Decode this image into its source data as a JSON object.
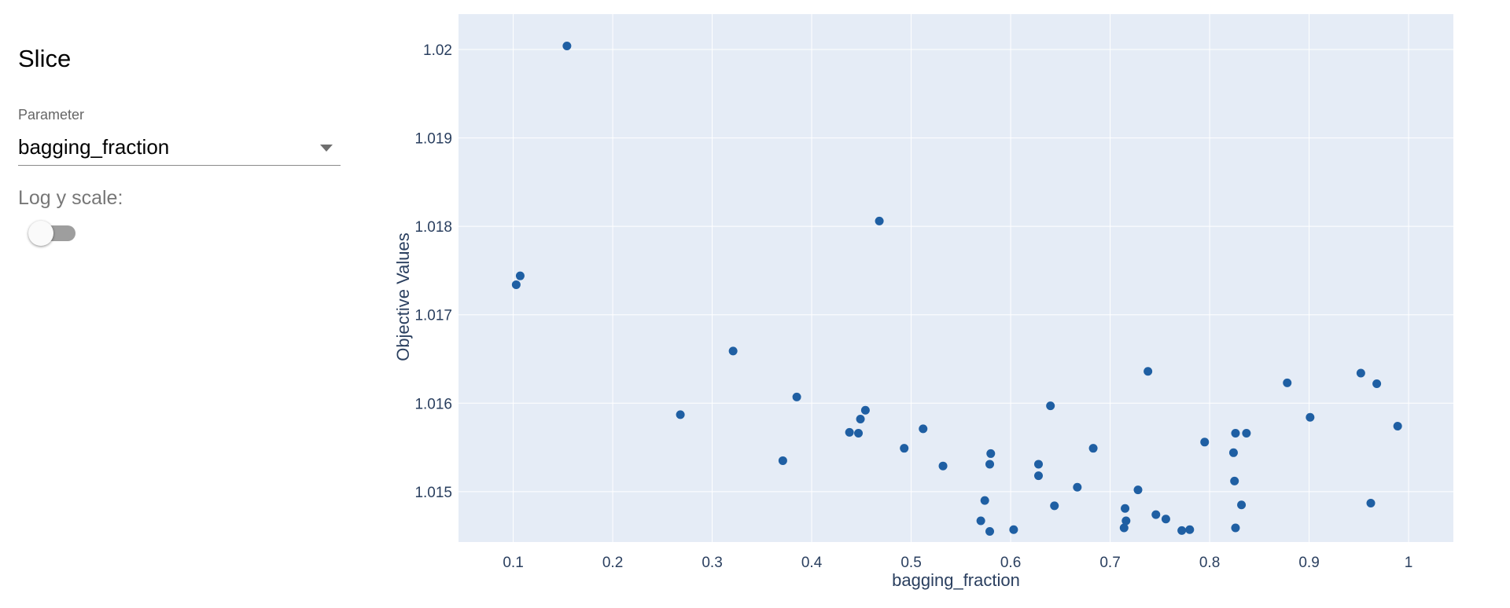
{
  "sidebar": {
    "title": "Slice",
    "parameter_label": "Parameter",
    "parameter_value": "bagging_fraction",
    "log_scale_label": "Log y scale:",
    "log_scale_enabled": false
  },
  "colors": {
    "plot_background": "#e5ecf6",
    "grid": "#ffffff",
    "marker": "#1f5fa3",
    "axis_text": "#2a3f5f"
  },
  "chart_data": {
    "type": "scatter",
    "xlabel": "bagging_fraction",
    "ylabel": "Objective Values",
    "xlim": [
      0.045,
      1.045
    ],
    "ylim": [
      1.01443,
      1.0204
    ],
    "log_y": false,
    "grid": true,
    "xticks": [
      0.1,
      0.2,
      0.3,
      0.4,
      0.5,
      0.6,
      0.7,
      0.8,
      0.9,
      1.0
    ],
    "xtick_labels": [
      "0.1",
      "0.2",
      "0.3",
      "0.4",
      "0.5",
      "0.6",
      "0.7",
      "0.8",
      "0.9",
      "1"
    ],
    "yticks": [
      1.015,
      1.016,
      1.017,
      1.018,
      1.019,
      1.02
    ],
    "ytick_labels": [
      "1.015",
      "1.016",
      "1.017",
      "1.018",
      "1.019",
      "1.02"
    ],
    "x": [
      0.154,
      0.103,
      0.107,
      0.468,
      0.321,
      0.268,
      0.385,
      0.371,
      0.438,
      0.447,
      0.449,
      0.454,
      0.493,
      0.512,
      0.532,
      0.57,
      0.574,
      0.579,
      0.579,
      0.58,
      0.603,
      0.628,
      0.628,
      0.64,
      0.644,
      0.667,
      0.683,
      0.714,
      0.715,
      0.716,
      0.728,
      0.738,
      0.746,
      0.756,
      0.772,
      0.78,
      0.795,
      0.824,
      0.825,
      0.826,
      0.826,
      0.832,
      0.837,
      0.878,
      0.901,
      0.952,
      0.962,
      0.968,
      0.989
    ],
    "y": [
      1.02004,
      1.01734,
      1.01744,
      1.01806,
      1.01659,
      1.01587,
      1.01607,
      1.01535,
      1.01567,
      1.01566,
      1.01582,
      1.01592,
      1.01549,
      1.01571,
      1.01529,
      1.01467,
      1.0149,
      1.01455,
      1.01531,
      1.01543,
      1.01457,
      1.01531,
      1.01518,
      1.01597,
      1.01484,
      1.01505,
      1.01549,
      1.01459,
      1.01481,
      1.01467,
      1.01502,
      1.01636,
      1.01474,
      1.01469,
      1.01456,
      1.01457,
      1.01556,
      1.01544,
      1.01512,
      1.01566,
      1.01459,
      1.01485,
      1.01566,
      1.01623,
      1.01584,
      1.01634,
      1.01487,
      1.01622,
      1.01574
    ]
  }
}
